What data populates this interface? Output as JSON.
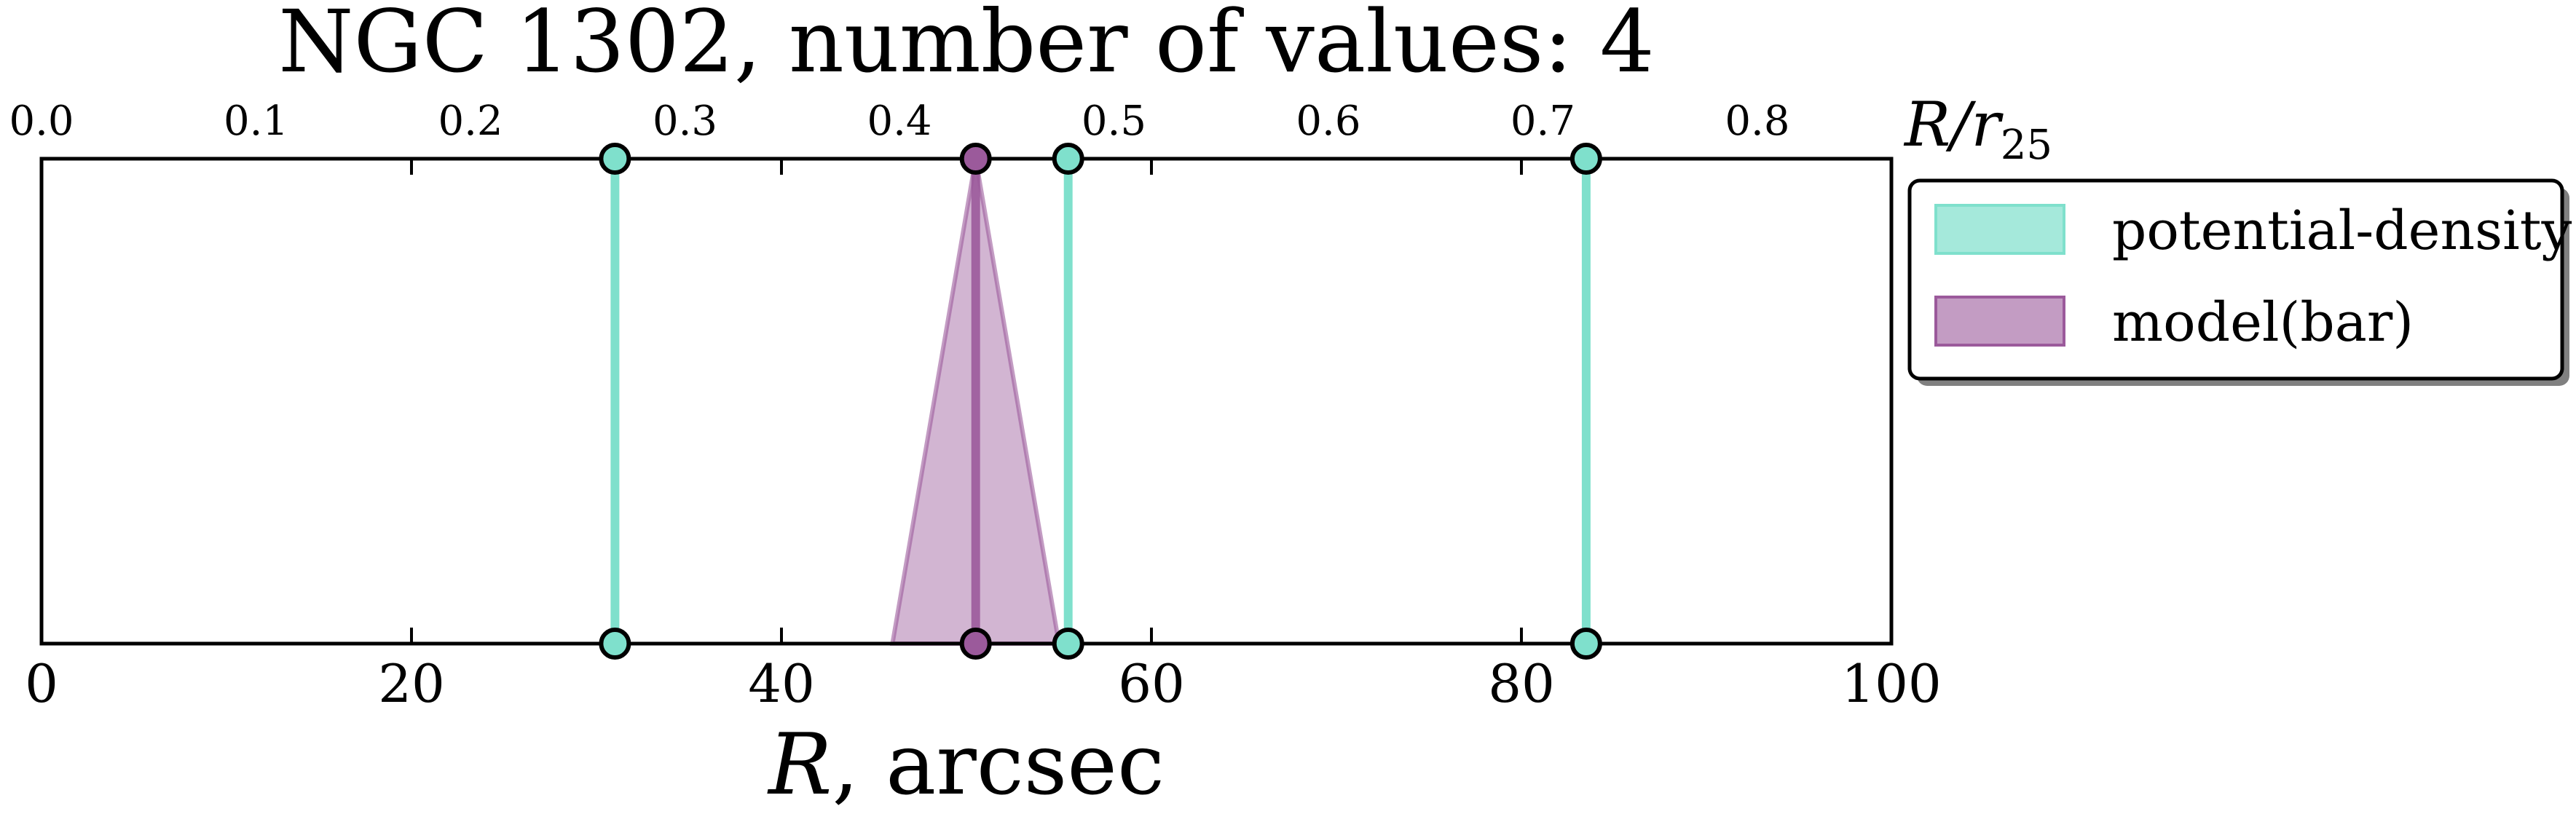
{
  "chart_data": {
    "type": "scatter",
    "title": "NGC 1302, number of values: 4",
    "xlabel": "R, arcsec",
    "xlim": [
      0,
      100
    ],
    "xticks": [
      "0",
      "20",
      "40",
      "60",
      "80",
      "100"
    ],
    "secondary_x": {
      "label": "R/r25",
      "lim": [
        0,
        0.8625
      ],
      "ticks": [
        "0.0",
        "0.1",
        "0.2",
        "0.3",
        "0.4",
        "0.5",
        "0.6",
        "0.7",
        "0.8"
      ]
    },
    "legend_position": "right, outside plot",
    "series": [
      {
        "name": "potential-density",
        "color": "#7fe0cc",
        "values": [
          31.0,
          55.5,
          83.5
        ]
      },
      {
        "name": "model(bar)",
        "color": "#9b5a9b",
        "values": [
          50.5
        ],
        "range": [
          46.0,
          55.0
        ]
      }
    ]
  }
}
